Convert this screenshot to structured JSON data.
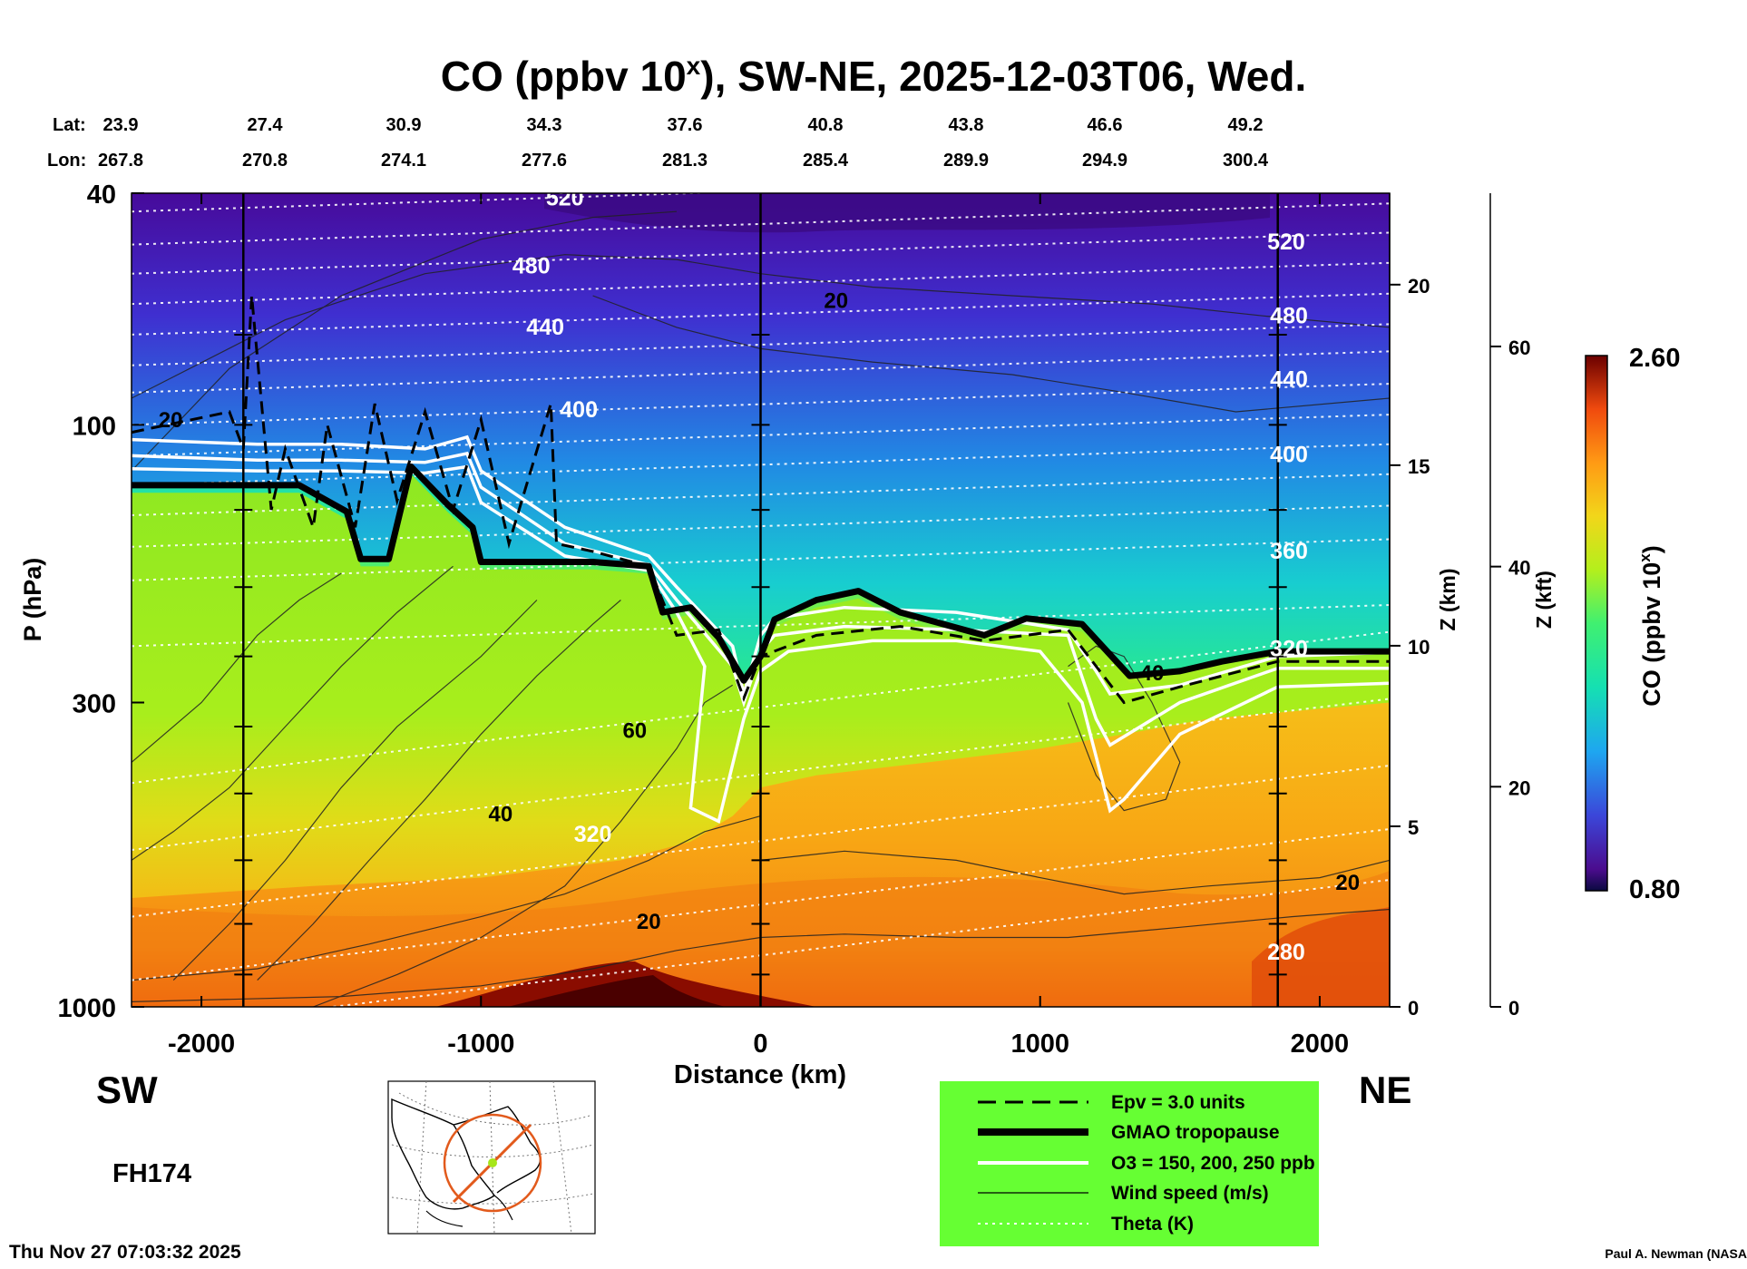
{
  "title_prefix": "CO (ppbv 10",
  "title_sup": "x",
  "title_suffix": "), SW-NE, 2025-12-03T06, Wed.",
  "lat_label": "Lat:",
  "lon_label": "Lon:",
  "lats": [
    "23.9",
    "27.4",
    "30.9",
    "34.3",
    "37.6",
    "40.8",
    "43.8",
    "46.6",
    "49.2"
  ],
  "lons": [
    "267.8",
    "270.8",
    "274.1",
    "277.6",
    "281.3",
    "285.4",
    "289.9",
    "294.9",
    "300.4"
  ],
  "left_text": {
    "sw": "SW",
    "ne": "NE",
    "forecast_hour": "FH174",
    "timestamp": "Thu Nov 27 07:03:32 2025",
    "credit": "Paul A. Newman (NASA"
  },
  "legend": {
    "items": [
      {
        "label": "Epv = 3.0 units",
        "style": "dashed"
      },
      {
        "label": "GMAO tropopause",
        "style": "thick"
      },
      {
        "label": "O3 = 150, 200, 250 ppb",
        "style": "white"
      },
      {
        "label": "Wind speed (m/s)",
        "style": "thin"
      },
      {
        "label": "Theta (K)",
        "style": "dotted"
      }
    ],
    "bg_color": "#66ff33"
  },
  "colorbar": {
    "max_label": "2.60",
    "min_label": "0.80",
    "title_prefix": "CO (ppbv 10",
    "title_sup": "x",
    "title_suffix": ")"
  },
  "chart_data": {
    "type": "heatmap",
    "title": "CO (ppbv 10^x), SW-NE, 2025-12-03T06, Wed.",
    "xlabel": "Distance (km)",
    "ylabel": "P (hPa)",
    "z_km_label": "Z (km)",
    "z_kft_label": "Z (kft)",
    "xlim": [
      -2250,
      2250
    ],
    "x_ticks": [
      -2000,
      -1000,
      0,
      1000,
      2000
    ],
    "x_tick_labels": [
      "-2000",
      "-1000",
      "0",
      "1000",
      "2000"
    ],
    "ylim_hpa": [
      1000,
      40
    ],
    "y_ticks": [
      40,
      100,
      300,
      1000
    ],
    "y_tick_labels": [
      "40",
      "100",
      "300",
      "1000"
    ],
    "z_km_ticks": [
      0,
      5,
      10,
      15,
      20
    ],
    "z_km_labels": [
      "0",
      "5",
      "10",
      "15",
      "20"
    ],
    "z_kft_ticks": [
      0,
      20,
      40,
      60
    ],
    "z_kft_labels": [
      "0",
      "20",
      "40",
      "60"
    ],
    "colorbar_range": [
      0.8,
      2.6
    ],
    "vertical_markers_km": [
      -1850,
      0,
      1850
    ],
    "theta_labels": [
      {
        "text": "520",
        "x": -700,
        "p": 42
      },
      {
        "text": "480",
        "x": -820,
        "p": 55
      },
      {
        "text": "440",
        "x": -770,
        "p": 70
      },
      {
        "text": "400",
        "x": -650,
        "p": 97
      },
      {
        "text": "320",
        "x": -600,
        "p": 520
      },
      {
        "text": "520",
        "x": 1880,
        "p": 50
      },
      {
        "text": "480",
        "x": 1890,
        "p": 67
      },
      {
        "text": "440",
        "x": 1890,
        "p": 86
      },
      {
        "text": "400",
        "x": 1890,
        "p": 116
      },
      {
        "text": "360",
        "x": 1890,
        "p": 170
      },
      {
        "text": "320",
        "x": 1890,
        "p": 250
      },
      {
        "text": "280",
        "x": 1880,
        "p": 830
      }
    ],
    "wind_labels": [
      {
        "text": "20",
        "x": 270,
        "p": 63
      },
      {
        "text": "20",
        "x": -2110,
        "p": 101
      },
      {
        "text": "60",
        "x": -450,
        "p": 345
      },
      {
        "text": "40",
        "x": -930,
        "p": 480
      },
      {
        "text": "20",
        "x": -400,
        "p": 735
      },
      {
        "text": "40",
        "x": 1400,
        "p": 275
      },
      {
        "text": "20",
        "x": 2100,
        "p": 630
      }
    ],
    "tropopause_hpa": {
      "x": [
        -2250,
        -1850,
        -1650,
        -1480,
        -1430,
        -1330,
        -1250,
        -1120,
        -1030,
        -1000,
        -600,
        -400,
        -350,
        -250,
        -150,
        -60,
        0,
        50,
        200,
        350,
        500,
        800,
        950,
        1150,
        1320,
        1500,
        1650,
        1850,
        2250
      ],
      "p": [
        127,
        127,
        127,
        141,
        170,
        170,
        118,
        137,
        150,
        172,
        172,
        175,
        210,
        206,
        232,
        275,
        250,
        216,
        200,
        193,
        210,
        230,
        215,
        220,
        270,
        265,
        255,
        245,
        245
      ]
    },
    "epv_hpa": {
      "x": [
        -2250,
        -1900,
        -1850,
        -1820,
        -1750,
        -1700,
        -1600,
        -1550,
        -1450,
        -1380,
        -1300,
        -1200,
        -1100,
        -1000,
        -900,
        -750,
        -730,
        -600,
        -400,
        -300,
        -150,
        -60,
        0,
        200,
        500,
        800,
        1100,
        1300,
        1500,
        1850,
        2250
      ],
      "p": [
        103,
        95,
        110,
        60,
        140,
        110,
        150,
        100,
        150,
        92,
        135,
        95,
        140,
        98,
        160,
        92,
        160,
        165,
        175,
        230,
        225,
        295,
        250,
        230,
        222,
        235,
        225,
        300,
        282,
        255,
        255
      ]
    },
    "o3_contours_hpa": [
      {
        "x": [
          -2250,
          -1800,
          -1500,
          -1200,
          -1050,
          -1000,
          -700,
          -400,
          -300,
          -100,
          -60,
          0,
          50,
          300,
          700,
          1100,
          1200,
          1250,
          1500,
          1850,
          2250
        ],
        "p": [
          106,
          108,
          108,
          110,
          105,
          120,
          150,
          168,
          190,
          240,
          290,
          230,
          215,
          206,
          210,
          225,
          265,
          290,
          280,
          250,
          246
        ]
      },
      {
        "x": [
          -2250,
          -1800,
          -1500,
          -1200,
          -1050,
          -1000,
          -700,
          -400,
          -300,
          -100,
          -60,
          0,
          50,
          300,
          700,
          1100,
          1200,
          1250,
          1500,
          1850,
          2250
        ],
        "p": [
          113,
          115,
          115,
          116,
          112,
          128,
          160,
          174,
          200,
          260,
          300,
          245,
          230,
          222,
          225,
          230,
          320,
          355,
          300,
          262,
          262
        ]
      },
      {
        "x": [
          -2250,
          -1800,
          -1500,
          -1200,
          -1050,
          -1000,
          -700,
          -400,
          -300,
          -200,
          -250,
          -150,
          -60,
          0,
          100,
          400,
          700,
          1000,
          1150,
          1250,
          1300,
          1500,
          1850,
          2250
        ],
        "p": [
          119,
          120,
          120,
          121,
          118,
          136,
          168,
          178,
          210,
          260,
          455,
          480,
          320,
          265,
          245,
          235,
          235,
          245,
          300,
          460,
          440,
          340,
          282,
          278
        ]
      }
    ]
  }
}
